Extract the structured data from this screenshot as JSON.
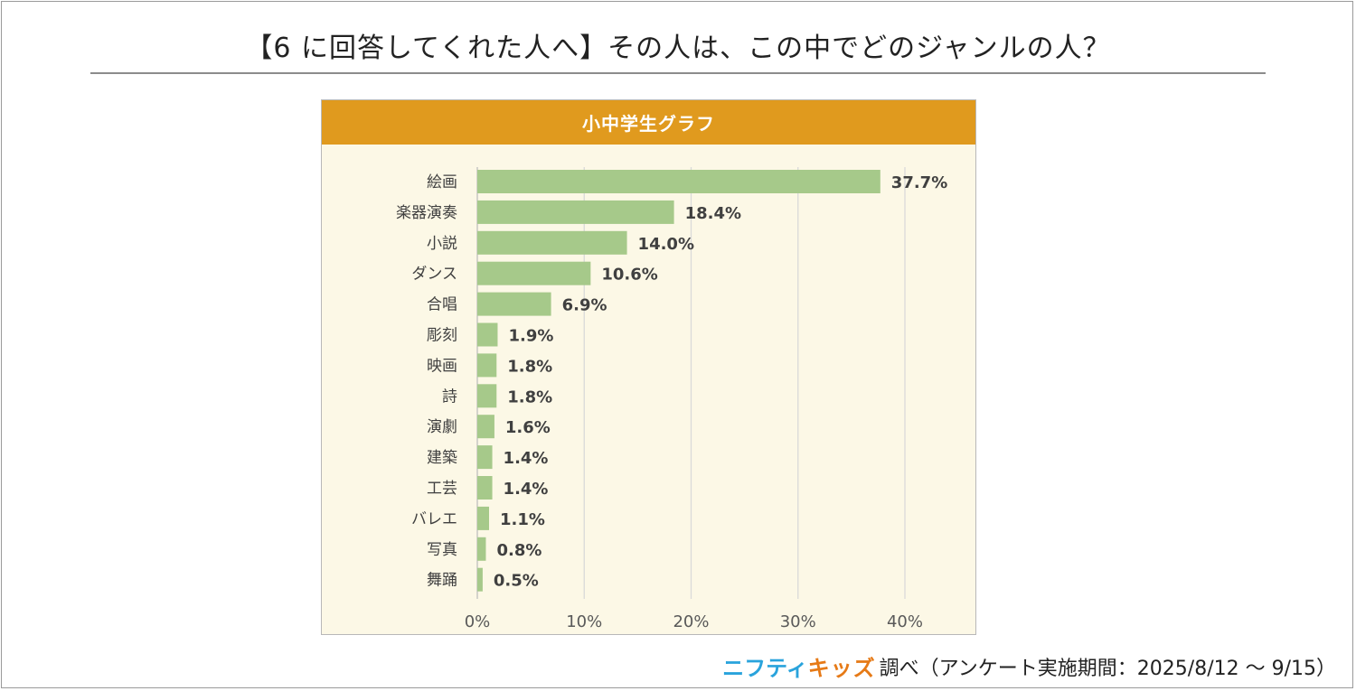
{
  "title": "【6 に回答してくれた人へ】その人は、この中でどのジャンルの人？",
  "footer": {
    "brand_part1": "ニフティ",
    "brand_part2": "キッズ",
    "note": "調べ（アンケート実施期間：2025/8/12 ～ 9/15）"
  },
  "colors": {
    "bar": "#a6c98a",
    "header": "#e09a1e",
    "panel_bg": "#fcf8e6",
    "gridline": "#d9d9d9"
  },
  "chart_data": {
    "type": "bar",
    "orientation": "horizontal",
    "title": "小中学生グラフ",
    "categories": [
      "絵画",
      "楽器演奏",
      "小説",
      "ダンス",
      "合唱",
      "彫刻",
      "映画",
      "詩",
      "演劇",
      "建築",
      "工芸",
      "バレエ",
      "写真",
      "舞踊"
    ],
    "values": [
      37.7,
      18.4,
      14.0,
      10.6,
      6.9,
      1.9,
      1.8,
      1.8,
      1.6,
      1.4,
      1.4,
      1.1,
      0.8,
      0.5
    ],
    "value_labels": [
      "37.7%",
      "18.4%",
      "14.0%",
      "10.6%",
      "6.9%",
      "1.9%",
      "1.8%",
      "1.8%",
      "1.6%",
      "1.4%",
      "1.4%",
      "1.1%",
      "0.8%",
      "0.5%"
    ],
    "xlim": [
      0,
      40
    ],
    "xticks": [
      0,
      10,
      20,
      30,
      40
    ],
    "xtick_labels": [
      "0%",
      "10%",
      "20%",
      "30%",
      "40%"
    ],
    "grid": true,
    "legend": "none"
  }
}
